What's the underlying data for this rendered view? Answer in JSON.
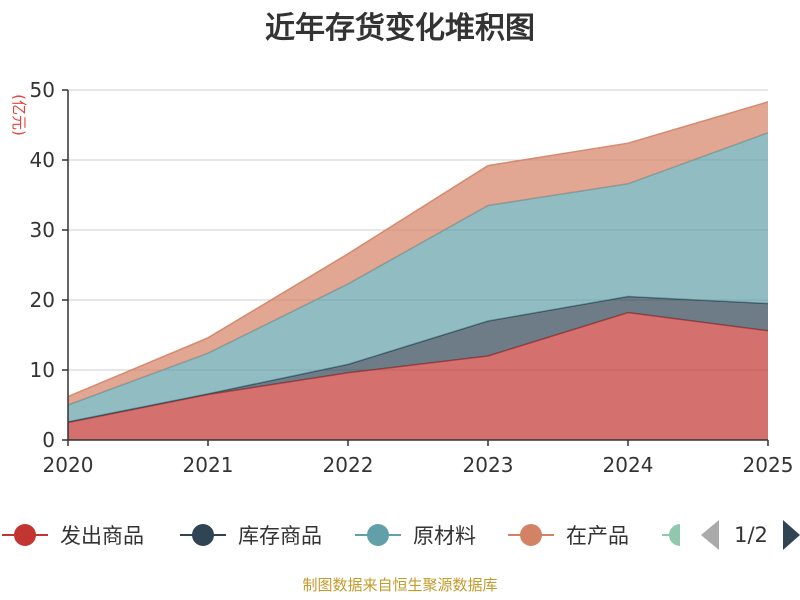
{
  "chart_data": {
    "type": "area",
    "stacked": true,
    "title": "近年存货变化堆积图",
    "ylabel": "(亿元)",
    "x": [
      "2020",
      "2021",
      "2022",
      "2023",
      "2024",
      "2025"
    ],
    "ylim": [
      0,
      50
    ],
    "yticks": [
      "0",
      "10",
      "20",
      "30",
      "40",
      "50"
    ],
    "grid": true,
    "legend_position": "bottom",
    "series": [
      {
        "name": "发出商品",
        "color": "#c23531",
        "values": [
          2.5,
          6.5,
          9.6,
          12.0,
          18.2,
          15.6
        ]
      },
      {
        "name": "库存商品",
        "color": "#2f4554",
        "values": [
          0.1,
          0.1,
          1.2,
          5.0,
          2.3,
          3.9
        ]
      },
      {
        "name": "原材料",
        "color": "#61a0a8",
        "values": [
          2.4,
          5.8,
          11.5,
          16.5,
          16.1,
          24.4
        ]
      },
      {
        "name": "在产品",
        "color": "#d48265",
        "values": [
          1.2,
          2.2,
          4.3,
          5.7,
          5.8,
          4.4
        ]
      }
    ]
  },
  "legend": {
    "items": [
      "发出商品",
      "库存商品",
      "原材料",
      "在产品"
    ],
    "partial_color": "#91c7ae",
    "page": "1/2"
  },
  "source": "制图数据来自恒生聚源数据库"
}
